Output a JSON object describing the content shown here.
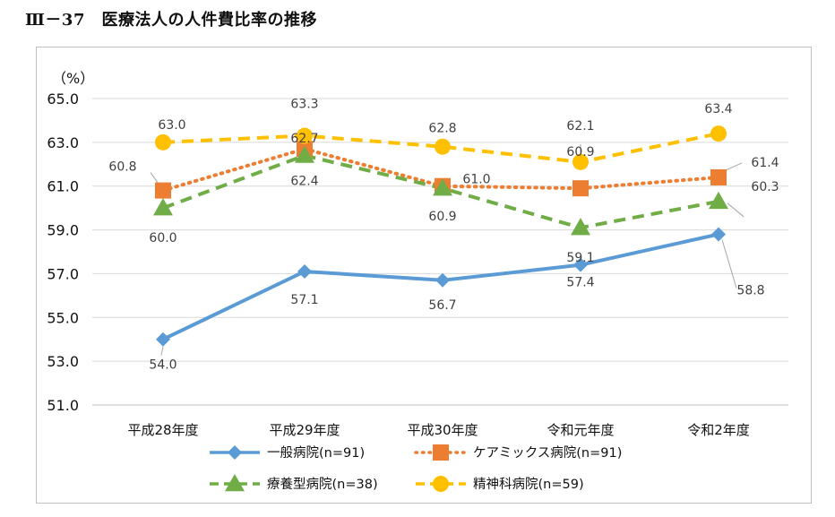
{
  "figure_title": "Ⅲ－37　医療法人の人件費比率の推移",
  "chart_data": {
    "type": "line",
    "title": "Ⅲ－37　医療法人の人件費比率の推移",
    "ylabel": "（%）",
    "xlabel": "",
    "ylim": [
      51.0,
      65.0
    ],
    "yticks": [
      "65.0",
      "63.0",
      "61.0",
      "59.0",
      "57.0",
      "55.0",
      "53.0",
      "51.0"
    ],
    "grid": true,
    "legend_position": "bottom",
    "categories": [
      "平成28年度",
      "平成29年度",
      "平成30年度",
      "令和元年度",
      "令和2年度"
    ],
    "series": [
      {
        "name": "一般病院(n=91)",
        "values": [
          54.0,
          57.1,
          56.7,
          57.4,
          58.8
        ],
        "labels": [
          "54.0",
          "57.1",
          "56.7",
          "57.4",
          "58.8"
        ],
        "color": "#5B9BD5",
        "style": "solid",
        "marker": "diamond"
      },
      {
        "name": "ケアミックス病院(n=91)",
        "values": [
          60.8,
          62.7,
          61.0,
          60.9,
          61.4
        ],
        "labels": [
          "60.8",
          "62.7",
          "61.0",
          "60.9",
          "61.4"
        ],
        "color": "#ED7D31",
        "style": "dotted",
        "marker": "square"
      },
      {
        "name": "療養型病院(n=38)",
        "values": [
          60.0,
          62.4,
          60.9,
          59.1,
          60.3
        ],
        "labels": [
          "60.0",
          "62.4",
          "60.9",
          "59.1",
          "60.3"
        ],
        "color": "#70AD47",
        "style": "dashed",
        "marker": "triangle"
      },
      {
        "name": "精神科病院(n=59)",
        "values": [
          63.0,
          63.3,
          62.8,
          62.1,
          63.4
        ],
        "labels": [
          "63.0",
          "63.3",
          "62.8",
          "62.1",
          "63.4"
        ],
        "color": "#FFC000",
        "style": "dashed",
        "marker": "circle"
      }
    ]
  }
}
